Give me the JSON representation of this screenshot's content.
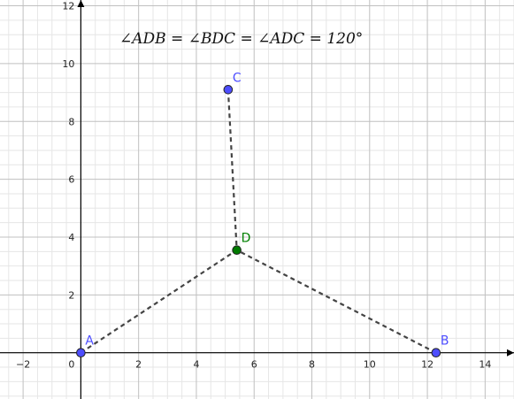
{
  "formula": "∠ADB = ∠BDC = ∠ADC = 120°",
  "axes": {
    "x_range": [
      -2.8,
      15.0
    ],
    "y_range": [
      -1.6,
      12.2
    ],
    "x_tick_labels": [
      "−2",
      "0",
      "2",
      "4",
      "6",
      "8",
      "10",
      "12",
      "14"
    ],
    "y_tick_labels": [
      "2",
      "4",
      "6",
      "8",
      "10",
      "12"
    ],
    "origin_label": "0",
    "major_step": 2,
    "minor_step": 0.5
  },
  "colors": {
    "grid_major": "#c0c0c0",
    "grid_minor": "#e6e6e6",
    "axis": "#000000",
    "segment": "#444444",
    "point_blue": "#4d4dff",
    "point_green": "#007a00",
    "label_blue": "#4d4dff",
    "label_green": "#008000"
  },
  "points": [
    {
      "id": "A",
      "label": "A",
      "x": 0.0,
      "y": 0.0,
      "color": "blue"
    },
    {
      "id": "B",
      "label": "B",
      "x": 12.3,
      "y": 0.0,
      "color": "blue"
    },
    {
      "id": "C",
      "label": "C",
      "x": 5.1,
      "y": 9.1,
      "color": "blue"
    },
    {
      "id": "D",
      "label": "D",
      "x": 5.4,
      "y": 3.55,
      "color": "green"
    }
  ],
  "segments": [
    {
      "from": "A",
      "to": "D",
      "style": "dashed"
    },
    {
      "from": "B",
      "to": "D",
      "style": "dashed"
    },
    {
      "from": "C",
      "to": "D",
      "style": "dashed"
    }
  ]
}
